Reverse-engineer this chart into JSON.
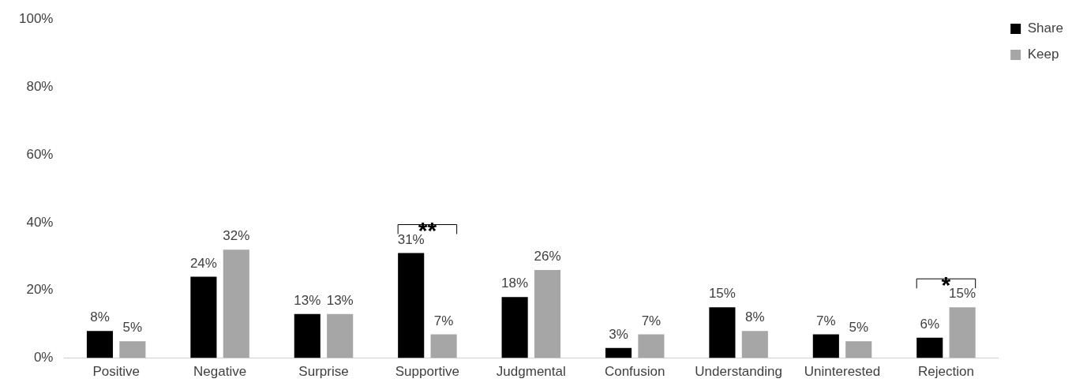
{
  "chart_data": {
    "type": "bar",
    "categories": [
      "Positive",
      "Negative",
      "Surprise",
      "Supportive",
      "Judgmental",
      "Confusion",
      "Understanding",
      "Uninterested",
      "Rejection"
    ],
    "series": [
      {
        "name": "Share",
        "color": "#000000",
        "values": [
          8,
          24,
          13,
          31,
          18,
          3,
          15,
          7,
          6
        ],
        "value_labels": [
          "8%",
          "24%",
          "13%",
          "31%",
          "18%",
          "3%",
          "15%",
          "7%",
          "6%"
        ]
      },
      {
        "name": "Keep",
        "color": "#a6a6a6",
        "values": [
          5,
          32,
          13,
          7,
          26,
          7,
          8,
          5,
          15
        ],
        "value_labels": [
          "5%",
          "32%",
          "13%",
          "7%",
          "26%",
          "7%",
          "8%",
          "5%",
          "15%"
        ]
      }
    ],
    "ylim": [
      0,
      100
    ],
    "yticks": [
      {
        "value": 0,
        "label": "0%"
      },
      {
        "value": 20,
        "label": "20%"
      },
      {
        "value": 40,
        "label": "40%"
      },
      {
        "value": 60,
        "label": "60%"
      },
      {
        "value": 80,
        "label": "80%"
      },
      {
        "value": 100,
        "label": "100%"
      }
    ],
    "annotations": [
      {
        "text": "**",
        "x": "Supportive",
        "y": 31
      },
      {
        "text": "*",
        "x": "Rejection",
        "y": 15
      }
    ],
    "grid": false,
    "legend": "top right"
  }
}
